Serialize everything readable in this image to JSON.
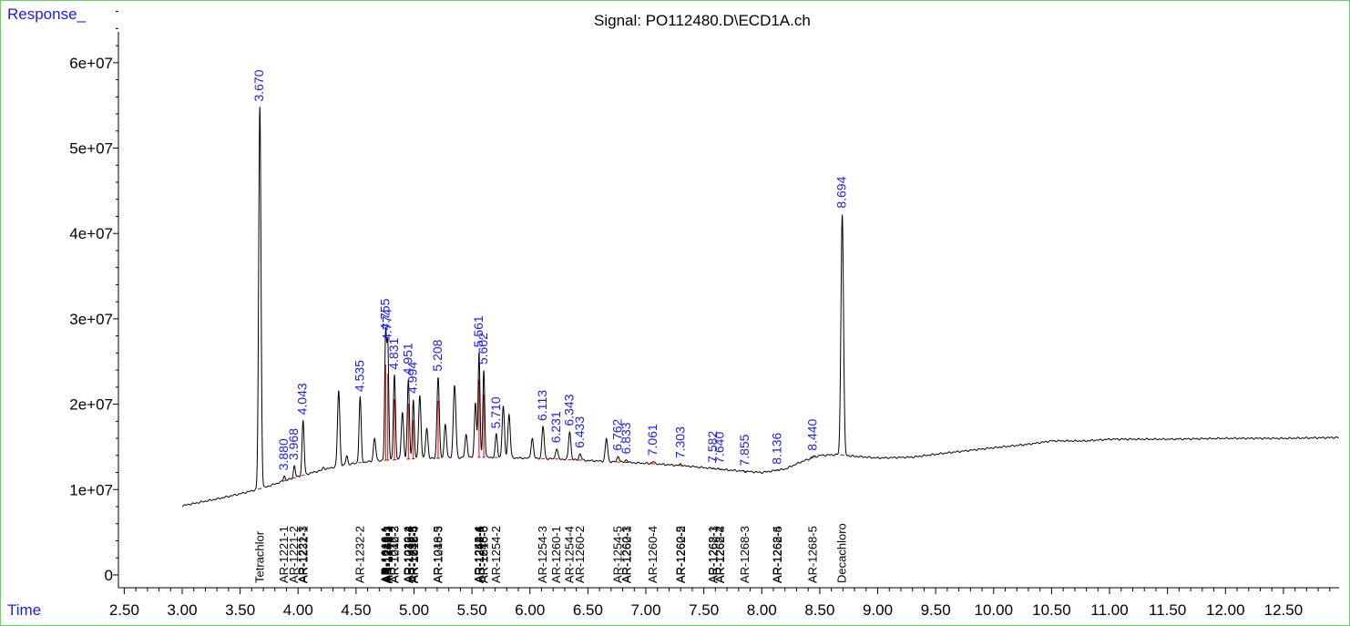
{
  "labels": {
    "response": "Response_",
    "time": "Time",
    "signal": "Signal: PO112480.D\\ECD1A.ch"
  },
  "colors": {
    "trace": "#000000",
    "baseline": "#e00000",
    "peak_label": "#1a1aff",
    "frame": "#63d463"
  },
  "chart_data": {
    "type": "line",
    "title": "Signal: PO112480.D\\ECD1A.ch",
    "xlabel": "Time",
    "ylabel": "Response_",
    "xlim": [
      2.45,
      12.98
    ],
    "ylim": [
      -1500000,
      65000000
    ],
    "x_ticks": [
      "2.50",
      "3.00",
      "3.50",
      "4.00",
      "4.50",
      "5.00",
      "5.50",
      "6.00",
      "6.50",
      "7.00",
      "7.50",
      "8.00",
      "8.50",
      "9.00",
      "9.50",
      "10.00",
      "10.50",
      "11.00",
      "11.50",
      "12.00",
      "12.50"
    ],
    "x_tick_values": [
      2.5,
      3.0,
      3.5,
      4.0,
      4.5,
      5.0,
      5.5,
      6.0,
      6.5,
      7.0,
      7.5,
      8.0,
      8.5,
      9.0,
      9.5,
      10.0,
      10.5,
      11.0,
      11.5,
      12.0,
      12.5
    ],
    "y_ticks": [
      "0",
      "1e+07",
      "2e+07",
      "3e+07",
      "4e+07",
      "5e+07",
      "6e+07"
    ],
    "y_tick_values": [
      0,
      10000000,
      20000000,
      30000000,
      40000000,
      50000000,
      60000000
    ],
    "baseline_points": [
      [
        3.0,
        8100000
      ],
      [
        3.3,
        8900000
      ],
      [
        3.5,
        9500000
      ],
      [
        3.7,
        10200000
      ],
      [
        3.9,
        11100000
      ],
      [
        4.1,
        11900000
      ],
      [
        4.3,
        12600000
      ],
      [
        4.5,
        13100000
      ],
      [
        4.7,
        13400000
      ],
      [
        5.0,
        13600000
      ],
      [
        5.3,
        13700000
      ],
      [
        5.6,
        13800000
      ],
      [
        5.9,
        13700000
      ],
      [
        6.2,
        13600000
      ],
      [
        6.5,
        13400000
      ],
      [
        6.8,
        13200000
      ],
      [
        7.1,
        13000000
      ],
      [
        7.4,
        12700000
      ],
      [
        7.7,
        12300000
      ],
      [
        8.0,
        12000000
      ],
      [
        8.2,
        12400000
      ],
      [
        8.35,
        13300000
      ],
      [
        8.5,
        14000000
      ],
      [
        8.65,
        14100000
      ],
      [
        8.8,
        13900000
      ],
      [
        9.0,
        13700000
      ],
      [
        9.3,
        13800000
      ],
      [
        9.6,
        14300000
      ],
      [
        10.0,
        14900000
      ],
      [
        10.3,
        15300000
      ],
      [
        10.5,
        15700000
      ],
      [
        10.8,
        15700000
      ],
      [
        11.0,
        15900000
      ],
      [
        11.5,
        15900000
      ],
      [
        12.0,
        16000000
      ],
      [
        12.5,
        16000000
      ],
      [
        12.98,
        16100000
      ]
    ],
    "peaks": [
      {
        "x": 3.67,
        "label": "3.670",
        "height": 54800000,
        "sigma": 0.01
      },
      {
        "x": 3.88,
        "label": "3.880",
        "height": 11600000,
        "sigma": 0.008
      },
      {
        "x": 3.968,
        "label": "3.968",
        "height": 12800000,
        "sigma": 0.008
      },
      {
        "x": 4.043,
        "label": "4.043",
        "height": 18100000,
        "sigma": 0.009
      },
      {
        "x": 4.22,
        "label": "",
        "height": 12600000,
        "sigma": 0.008
      },
      {
        "x": 4.35,
        "label": "",
        "height": 21600000,
        "sigma": 0.01
      },
      {
        "x": 4.42,
        "label": "",
        "height": 14000000,
        "sigma": 0.008
      },
      {
        "x": 4.535,
        "label": "4.535",
        "height": 20800000,
        "sigma": 0.009
      },
      {
        "x": 4.66,
        "label": "",
        "height": 16000000,
        "sigma": 0.01
      },
      {
        "x": 4.755,
        "label": "4.755",
        "height": 28000000,
        "sigma": 0.008
      },
      {
        "x": 4.774,
        "label": "4.774",
        "height": 26800000,
        "sigma": 0.008
      },
      {
        "x": 4.831,
        "label": "4.831",
        "height": 23400000,
        "sigma": 0.009
      },
      {
        "x": 4.9,
        "label": "",
        "height": 19000000,
        "sigma": 0.01
      },
      {
        "x": 4.951,
        "label": "4.951",
        "height": 22800000,
        "sigma": 0.009
      },
      {
        "x": 4.994,
        "label": "4.994",
        "height": 20600000,
        "sigma": 0.008
      },
      {
        "x": 5.05,
        "label": "",
        "height": 21000000,
        "sigma": 0.01
      },
      {
        "x": 5.11,
        "label": "",
        "height": 17200000,
        "sigma": 0.01
      },
      {
        "x": 5.208,
        "label": "5.208",
        "height": 23200000,
        "sigma": 0.01
      },
      {
        "x": 5.27,
        "label": "",
        "height": 17600000,
        "sigma": 0.01
      },
      {
        "x": 5.35,
        "label": "",
        "height": 22200000,
        "sigma": 0.011
      },
      {
        "x": 5.45,
        "label": "",
        "height": 16400000,
        "sigma": 0.01
      },
      {
        "x": 5.53,
        "label": "",
        "height": 20200000,
        "sigma": 0.009
      },
      {
        "x": 5.561,
        "label": "5.561",
        "height": 26000000,
        "sigma": 0.008
      },
      {
        "x": 5.602,
        "label": "5.602",
        "height": 24000000,
        "sigma": 0.008
      },
      {
        "x": 5.71,
        "label": "5.710",
        "height": 16500000,
        "sigma": 0.009
      },
      {
        "x": 5.77,
        "label": "",
        "height": 19700000,
        "sigma": 0.01
      },
      {
        "x": 5.82,
        "label": "",
        "height": 18800000,
        "sigma": 0.01
      },
      {
        "x": 6.02,
        "label": "",
        "height": 16000000,
        "sigma": 0.01
      },
      {
        "x": 6.113,
        "label": "6.113",
        "height": 17400000,
        "sigma": 0.01
      },
      {
        "x": 6.231,
        "label": "6.231",
        "height": 14800000,
        "sigma": 0.01
      },
      {
        "x": 6.343,
        "label": "6.343",
        "height": 16800000,
        "sigma": 0.01
      },
      {
        "x": 6.433,
        "label": "6.433",
        "height": 14200000,
        "sigma": 0.01
      },
      {
        "x": 6.66,
        "label": "",
        "height": 16000000,
        "sigma": 0.01
      },
      {
        "x": 6.762,
        "label": "6.762",
        "height": 13900000,
        "sigma": 0.01
      },
      {
        "x": 6.833,
        "label": "6.833",
        "height": 13500000,
        "sigma": 0.01
      },
      {
        "x": 7.061,
        "label": "7.061",
        "height": 13300000,
        "sigma": 0.01
      },
      {
        "x": 7.303,
        "label": "7.303",
        "height": 13000000,
        "sigma": 0.01
      },
      {
        "x": 7.582,
        "label": "7.582",
        "height": 12500000,
        "sigma": 0.01
      },
      {
        "x": 7.64,
        "label": "7.640",
        "height": 12400000,
        "sigma": 0.01
      },
      {
        "x": 7.855,
        "label": "7.855",
        "height": 12100000,
        "sigma": 0.01
      },
      {
        "x": 8.136,
        "label": "8.136",
        "height": 12300000,
        "sigma": 0.01
      },
      {
        "x": 8.44,
        "label": "8.440",
        "height": 13900000,
        "sigma": 0.012
      },
      {
        "x": 8.694,
        "label": "8.694",
        "height": 42300000,
        "sigma": 0.011
      }
    ],
    "compounds": [
      {
        "x": 3.67,
        "names": [
          "Tetrachlor"
        ]
      },
      {
        "x": 3.88,
        "names": [
          "AR-1221-1"
        ]
      },
      {
        "x": 3.968,
        "names": [
          "AR-1221-2"
        ]
      },
      {
        "x": 4.043,
        "names": [
          "AR-1221-3",
          "AR-1232-1"
        ]
      },
      {
        "x": 4.535,
        "names": [
          "AR-1232-2"
        ]
      },
      {
        "x": 4.755,
        "names": [
          "AR-1016-1",
          "AR-1242-1",
          "AR-1248-1"
        ]
      },
      {
        "x": 4.774,
        "names": [
          "AR-1232-3",
          "AR-1242-2",
          "AR-1248-2"
        ]
      },
      {
        "x": 4.831,
        "names": [
          "AR-1016-2",
          "AR-1242-3"
        ]
      },
      {
        "x": 4.951,
        "names": [
          "AR-1232-4",
          "AR-1016-3",
          "AR-1242-4"
        ]
      },
      {
        "x": 4.994,
        "names": [
          "AR-1232-5",
          "AR-1242-5",
          "AR-1016-4"
        ]
      },
      {
        "x": 5.208,
        "names": [
          "AR-1016-5",
          "AR-1248-3"
        ]
      },
      {
        "x": 5.561,
        "names": [
          "AR-1248-4",
          "AR-1254-1",
          "AR-1242-6"
        ]
      },
      {
        "x": 5.602,
        "names": [
          "AR-1248-5",
          "AR-1016-6"
        ]
      },
      {
        "x": 5.71,
        "names": [
          "AR-1254-2"
        ]
      },
      {
        "x": 6.113,
        "names": [
          "AR-1254-3"
        ]
      },
      {
        "x": 6.231,
        "names": [
          "AR-1260-1"
        ]
      },
      {
        "x": 6.343,
        "names": [
          "AR-1254-4"
        ]
      },
      {
        "x": 6.433,
        "names": [
          "AR-1260-2"
        ]
      },
      {
        "x": 6.762,
        "names": [
          "AR-1254-5"
        ]
      },
      {
        "x": 6.833,
        "names": [
          "AR-1260-3",
          "AR-1262-1"
        ]
      },
      {
        "x": 7.061,
        "names": [
          "AR-1260-4"
        ]
      },
      {
        "x": 7.303,
        "names": [
          "AR-1260-5",
          "AR-1262-2"
        ]
      },
      {
        "x": 7.582,
        "names": [
          "AR-1268-1",
          "AR-1262-3"
        ]
      },
      {
        "x": 7.64,
        "names": [
          "AR-1268-2",
          "AR-1262-4"
        ]
      },
      {
        "x": 7.855,
        "names": [
          "AR-1268-3"
        ]
      },
      {
        "x": 8.136,
        "names": [
          "AR-1268-4",
          "AR-1262-5"
        ]
      },
      {
        "x": 8.44,
        "names": [
          "AR-1268-5"
        ]
      },
      {
        "x": 8.694,
        "names": [
          "Decachloro"
        ]
      }
    ]
  }
}
